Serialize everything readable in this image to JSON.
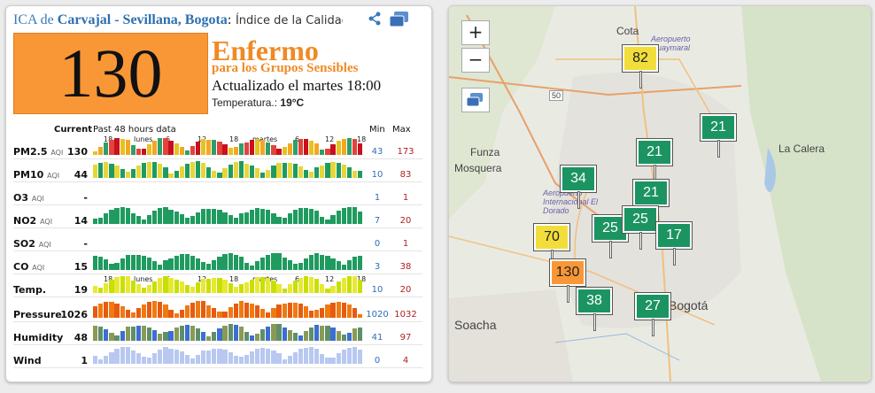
{
  "header": {
    "prefix": "ICA de ",
    "city": "Carvajal - Sevillana, Bogota",
    "colon": ": ",
    "desc": "Índice de la Calidad d"
  },
  "aqi": {
    "value": "130",
    "status": "Enfermo",
    "status_sub": "para los Grupos Sensibles",
    "updated": "Actualizado el martes 18:00",
    "temp_label": "Temperatura.:",
    "temp_value": "19°C",
    "color": "#f99737"
  },
  "table": {
    "col_current": "Current",
    "col_past": "Past 48 hours data",
    "col_min": "Min",
    "col_max": "Max",
    "ticks": [
      "18",
      "lunes",
      "6",
      "12",
      "18",
      "martes",
      "6",
      "12",
      "18"
    ],
    "rows": [
      {
        "name": "PM2.5",
        "unit": "AQI",
        "current": "130",
        "min": "43",
        "max": "173",
        "colors": [
          "#e6c21e",
          "#f5a623",
          "#2e9e6b",
          "#e2433a",
          "#c8101e"
        ]
      },
      {
        "name": "PM10",
        "unit": "AQI",
        "current": "44",
        "min": "10",
        "max": "83",
        "colors": [
          "#1f9b5f",
          "#e6d63a"
        ]
      },
      {
        "name": "O3",
        "unit": "AQI",
        "current": "-",
        "min": "1",
        "max": "1",
        "colors": []
      },
      {
        "name": "NO2",
        "unit": "AQI",
        "current": "14",
        "min": "7",
        "max": "20",
        "colors": [
          "#1f9b5f"
        ]
      },
      {
        "name": "SO2",
        "unit": "AQI",
        "current": "-",
        "min": "0",
        "max": "1",
        "colors": []
      },
      {
        "name": "CO",
        "unit": "AQI",
        "current": "15",
        "min": "3",
        "max": "38",
        "colors": [
          "#1f9b5f"
        ]
      },
      {
        "name": "Temp.",
        "unit": "",
        "current": "19",
        "min": "10",
        "max": "20",
        "colors": [
          "#e8e833",
          "#c8e000"
        ]
      },
      {
        "name": "Pressure",
        "unit": "",
        "current": "1026",
        "min": "1020",
        "max": "1032",
        "colors": [
          "#f07a10",
          "#e85a10"
        ]
      },
      {
        "name": "Humidity",
        "unit": "",
        "current": "48",
        "min": "41",
        "max": "97",
        "colors": [
          "#5e8f6a",
          "#3b6fd0",
          "#8a9a55"
        ]
      },
      {
        "name": "Wind",
        "unit": "",
        "current": "1",
        "min": "0",
        "max": "4",
        "colors": [
          "#b8c8f0"
        ]
      }
    ]
  },
  "map": {
    "labels": [
      "Cota",
      "Aeropuerto Guaymaral",
      "Funza",
      "Mosquera",
      "Aeropuerto Internacional El Dorado",
      "La Calera",
      "Soacha",
      "Bogotá",
      "50"
    ],
    "markers": [
      {
        "value": "82",
        "color": "#f2de3a",
        "text": "#222"
      },
      {
        "value": "21",
        "color": "#1b9462",
        "text": "#fff"
      },
      {
        "value": "21",
        "color": "#1b9462",
        "text": "#fff"
      },
      {
        "value": "34",
        "color": "#1b9462",
        "text": "#fff"
      },
      {
        "value": "21",
        "color": "#1b9462",
        "text": "#fff"
      },
      {
        "value": "25",
        "color": "#1b9462",
        "text": "#fff"
      },
      {
        "value": "25",
        "color": "#1b9462",
        "text": "#fff"
      },
      {
        "value": "70",
        "color": "#f2de3a",
        "text": "#222"
      },
      {
        "value": "17",
        "color": "#1b9462",
        "text": "#fff"
      },
      {
        "value": "130",
        "color": "#f99737",
        "text": "#222"
      },
      {
        "value": "38",
        "color": "#1b9462",
        "text": "#fff"
      },
      {
        "value": "27",
        "color": "#1b9462",
        "text": "#fff"
      }
    ],
    "zoom_in": "+",
    "zoom_out": "−"
  }
}
